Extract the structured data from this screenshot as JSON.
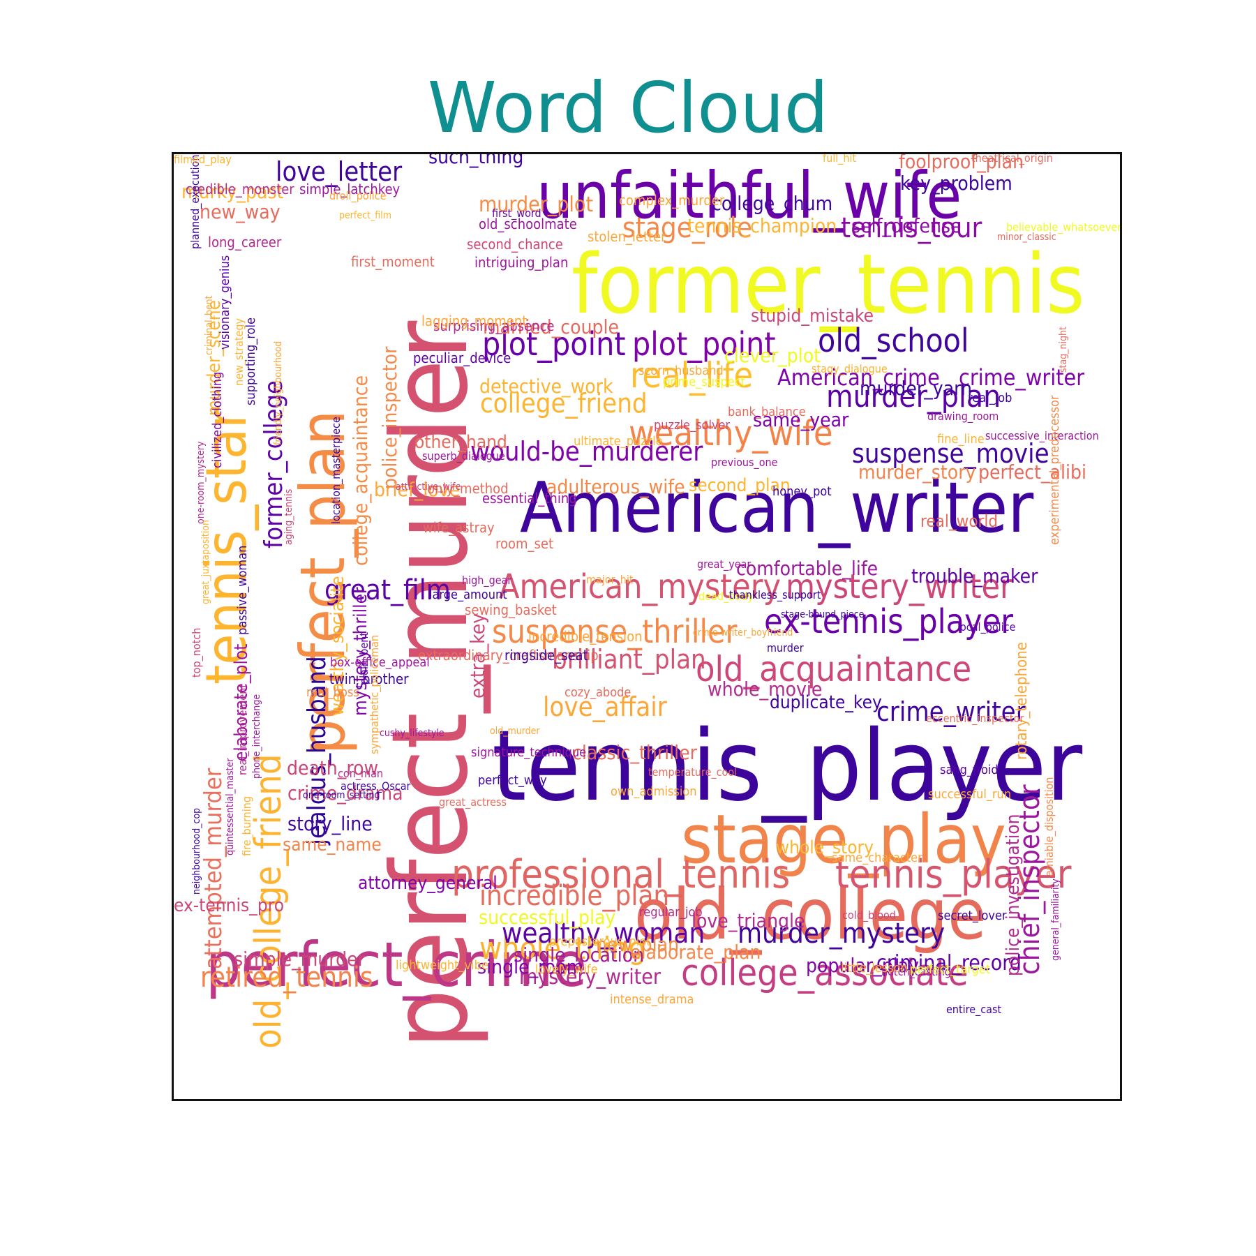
{
  "title": "Word Cloud",
  "palette": "plasma",
  "words": [
    {
      "text": "tennis_player",
      "size": 140,
      "color": "#3d049b"
    },
    {
      "text": "perfect_murder",
      "size": 150,
      "color": "#d45270",
      "rotate": true
    },
    {
      "text": "former_tennis",
      "size": 118,
      "color": "#f0f921"
    },
    {
      "text": "American_writer",
      "size": 100,
      "color": "#3e049c"
    },
    {
      "text": "unfaithful_wife",
      "size": 92,
      "color": "#6a00a8"
    },
    {
      "text": "old_college",
      "size": 100,
      "color": "#e56b5d"
    },
    {
      "text": "stage_play",
      "size": 96,
      "color": "#f1844b"
    },
    {
      "text": "perfect_crime",
      "size": 88,
      "color": "#bd3786"
    },
    {
      "text": "perfect_plan",
      "size": 88,
      "color": "#f58c46",
      "rotate": true
    },
    {
      "text": "tennis_star",
      "size": 80,
      "color": "#fdb42f",
      "rotate": true
    },
    {
      "text": "professional_tennis",
      "size": 56,
      "color": "#e06461"
    },
    {
      "text": "tennis_player",
      "size": 56,
      "color": "#d5546e"
    },
    {
      "text": "college_associate",
      "size": 52,
      "color": "#c33d80"
    },
    {
      "text": "old_college_friend",
      "size": 52,
      "color": "#fdb32f",
      "rotate": true
    },
    {
      "text": "American_mystery",
      "size": 48,
      "color": "#d5536f"
    },
    {
      "text": "mystery_writer",
      "size": 48,
      "color": "#cc4778"
    },
    {
      "text": "old_acquaintance",
      "size": 50,
      "color": "#cc4778"
    },
    {
      "text": "ex-tennis_player",
      "size": 48,
      "color": "#6a00a8"
    },
    {
      "text": "suspense_thriller",
      "size": 46,
      "color": "#f48849"
    },
    {
      "text": "real_life",
      "size": 50,
      "color": "#febd2a"
    },
    {
      "text": "wealthy_wife",
      "size": 50,
      "color": "#f2844b"
    },
    {
      "text": "plot_point",
      "size": 46,
      "color": "#6a00a8"
    },
    {
      "text": "plot_point",
      "size": 46,
      "color": "#7e03a8"
    },
    {
      "text": "old_school",
      "size": 46,
      "color": "#3e049c"
    },
    {
      "text": "murder_plan",
      "size": 44,
      "color": "#5c01a6"
    },
    {
      "text": "whole_thing",
      "size": 44,
      "color": "#fbb32f"
    },
    {
      "text": "stage_role",
      "size": 40,
      "color": "#f48849"
    },
    {
      "text": "tennis_tour",
      "size": 40,
      "color": "#8b0aa5"
    },
    {
      "text": "retired_tennis",
      "size": 40,
      "color": "#f2844b"
    },
    {
      "text": "incredible_plan",
      "size": 40,
      "color": "#e56b5d"
    },
    {
      "text": "wealthy_woman",
      "size": 40,
      "color": "#5c01a6"
    },
    {
      "text": "murder_mystery",
      "size": 40,
      "color": "#3e049c"
    },
    {
      "text": "would-be_murderer",
      "size": 38,
      "color": "#7e03a8"
    },
    {
      "text": "college_friend",
      "size": 38,
      "color": "#fdb42f"
    },
    {
      "text": "great_film",
      "size": 40,
      "color": "#5c01a6"
    },
    {
      "text": "chief_inspector",
      "size": 40,
      "color": "#9c179e",
      "rotate": true
    },
    {
      "text": "brilliant_plan",
      "size": 38,
      "color": "#d45270"
    },
    {
      "text": "love_affair",
      "size": 38,
      "color": "#fca636"
    },
    {
      "text": "crime_writer",
      "size": 38,
      "color": "#3e049c"
    },
    {
      "text": "love_letter",
      "size": 38,
      "color": "#3e049c"
    },
    {
      "text": "suspense_movie",
      "size": 38,
      "color": "#3e049c"
    },
    {
      "text": "jealous_husband",
      "size": 36,
      "color": "#2a0593",
      "rotate": true
    },
    {
      "text": "attempted_murder",
      "size": 34,
      "color": "#e8705c",
      "rotate": true
    },
    {
      "text": "former_college",
      "size": 36,
      "color": "#5c01a6",
      "rotate": true
    },
    {
      "text": "American_crime",
      "size": 32,
      "color": "#7e03a8"
    },
    {
      "text": "crime_writer",
      "size": 32,
      "color": "#7e03a8"
    },
    {
      "text": "murder_plot",
      "size": 30,
      "color": "#f58c46"
    },
    {
      "text": "criminal_record",
      "size": 30,
      "color": "#5c01a6"
    },
    {
      "text": "classic_thriller",
      "size": 28,
      "color": "#e56b5d"
    },
    {
      "text": "mystery_writer",
      "size": 30,
      "color": "#b12a90"
    },
    {
      "text": "popular_play",
      "size": 28,
      "color": "#7e03a8"
    },
    {
      "text": "single_location",
      "size": 28,
      "color": "#9c179e"
    },
    {
      "text": "elaborate_plan",
      "size": 28,
      "color": "#f48849"
    },
    {
      "text": "love_triangle",
      "size": 28,
      "color": "#b12a90"
    },
    {
      "text": "successful_play",
      "size": 28,
      "color": "#f0f921"
    },
    {
      "text": "murder_story",
      "size": 28,
      "color": "#f2844b"
    },
    {
      "text": "perfect_alibi",
      "size": 28,
      "color": "#e56b5d"
    },
    {
      "text": "tennis_champion",
      "size": 28,
      "color": "#fdb42f"
    },
    {
      "text": "self_defense",
      "size": 28,
      "color": "#8b0aa5"
    },
    {
      "text": "foolproof_plan",
      "size": 28,
      "color": "#e56b5d"
    },
    {
      "text": "key_problem",
      "size": 28,
      "color": "#3e049c"
    },
    {
      "text": "college_chum",
      "size": 28,
      "color": "#3e049c"
    },
    {
      "text": "such_thing",
      "size": 28,
      "color": "#3e049c"
    },
    {
      "text": "murky_past",
      "size": 28,
      "color": "#fdb42f"
    },
    {
      "text": "new_way",
      "size": 28,
      "color": "#e56b5d"
    },
    {
      "text": "clever_plot",
      "size": 28,
      "color": "#f0f921"
    },
    {
      "text": "married_couple",
      "size": 28,
      "color": "#e56b5d"
    },
    {
      "text": "stupid_mistake",
      "size": 26,
      "color": "#cc4778"
    },
    {
      "text": "detective_work",
      "size": 28,
      "color": "#fdb42f"
    },
    {
      "text": "adulterous_wife",
      "size": 28,
      "color": "#f48849"
    },
    {
      "text": "second_plan",
      "size": 26,
      "color": "#fdb42f"
    },
    {
      "text": "same_year",
      "size": 28,
      "color": "#7e03a8"
    },
    {
      "text": "murder_yarn",
      "size": 28,
      "color": "#3e049c"
    },
    {
      "text": "other_hand",
      "size": 26,
      "color": "#e56b5d"
    },
    {
      "text": "brief_love",
      "size": 28,
      "color": "#fca636"
    },
    {
      "text": "comfortable_life",
      "size": 28,
      "color": "#9c179e"
    },
    {
      "text": "trouble_maker",
      "size": 28,
      "color": "#5c01a6"
    },
    {
      "text": "whole_movie",
      "size": 28,
      "color": "#b12a90"
    },
    {
      "text": "duplicate_key",
      "size": 26,
      "color": "#3e049c"
    },
    {
      "text": "death_row",
      "size": 28,
      "color": "#cc4778"
    },
    {
      "text": "crime_drama",
      "size": 28,
      "color": "#cc4778"
    },
    {
      "text": "story_line",
      "size": 28,
      "color": "#3e049c"
    },
    {
      "text": "same_name",
      "size": 26,
      "color": "#f2844b"
    },
    {
      "text": "ex-tennis_pro",
      "size": 26,
      "color": "#cc4778"
    },
    {
      "text": "simple_murder",
      "size": 28,
      "color": "#cc4778"
    },
    {
      "text": "single_room",
      "size": 28,
      "color": "#7e03a8"
    },
    {
      "text": "new_plan",
      "size": 28,
      "color": "#f58c46"
    },
    {
      "text": "attorney_general",
      "size": 26,
      "color": "#7e03a8"
    },
    {
      "text": "whole_story",
      "size": 26,
      "color": "#fdb42f"
    },
    {
      "text": "real_world",
      "size": 24,
      "color": "#e56b5d"
    },
    {
      "text": "police_investigation",
      "size": 26,
      "color": "#b12a90",
      "rotate": true
    },
    {
      "text": "police_inspector",
      "size": 28,
      "color": "#f48849",
      "rotate": true
    },
    {
      "text": "college_acquaintance",
      "size": 28,
      "color": "#f58c46",
      "rotate": true
    },
    {
      "text": "extra_key",
      "size": 28,
      "color": "#cc4778",
      "rotate": true
    },
    {
      "text": "wealthy_socialite",
      "size": 26,
      "color": "#fdb42f",
      "rotate": true
    },
    {
      "text": "mystery_thriller",
      "size": 26,
      "color": "#7e03a8",
      "rotate": true
    },
    {
      "text": "elaborate_plot",
      "size": 26,
      "color": "#9c179e",
      "rotate": true
    },
    {
      "text": "murder_scene",
      "size": 26,
      "color": "#fdb42f",
      "rotate": true
    },
    {
      "text": "rotary_telephone",
      "size": 22,
      "color": "#fca636",
      "rotate": true
    },
    {
      "text": "credible_monster",
      "size": 20,
      "color": "#b12a90"
    },
    {
      "text": "simple_latchkey",
      "size": 20,
      "color": "#9c179e"
    },
    {
      "text": "long_career",
      "size": 20,
      "color": "#b12a90"
    },
    {
      "text": "old_schoolmate",
      "size": 20,
      "color": "#9c179e"
    },
    {
      "text": "second_chance",
      "size": 20,
      "color": "#cc4778"
    },
    {
      "text": "intriguing_plan",
      "size": 20,
      "color": "#9c179e"
    },
    {
      "text": "first_moment",
      "size": 20,
      "color": "#e56b5d"
    },
    {
      "text": "surprising_absence",
      "size": 20,
      "color": "#b12a90"
    },
    {
      "text": "peculiar_device",
      "size": 20,
      "color": "#5c01a6"
    },
    {
      "text": "lagging_moment",
      "size": 20,
      "color": "#fca636"
    },
    {
      "text": "stolen_letter",
      "size": 20,
      "color": "#fca636"
    },
    {
      "text": "complex_murder",
      "size": 20,
      "color": "#fca636"
    },
    {
      "text": "ultimate_puzzle",
      "size": 18,
      "color": "#fdb42f"
    },
    {
      "text": "essential_thing",
      "size": 20,
      "color": "#9c179e"
    },
    {
      "text": "only_method",
      "size": 20,
      "color": "#e56b5d"
    },
    {
      "text": "wife_astray",
      "size": 20,
      "color": "#e56b5d"
    },
    {
      "text": "room_set",
      "size": 20,
      "color": "#e56b5d"
    },
    {
      "text": "large_amount",
      "size": 18,
      "color": "#3e049c"
    },
    {
      "text": "sewing_basket",
      "size": 20,
      "color": "#e56b5d"
    },
    {
      "text": "incredible_tension",
      "size": 20,
      "color": "#fca636"
    },
    {
      "text": "extraordinary_craftsmanship",
      "size": 20,
      "color": "#e56b5d"
    },
    {
      "text": "ringside_seat",
      "size": 20,
      "color": "#3e049c"
    },
    {
      "text": "box-office_appeal",
      "size": 18,
      "color": "#9c179e"
    },
    {
      "text": "twin_brother",
      "size": 20,
      "color": "#3e049c"
    },
    {
      "text": "real_boss",
      "size": 18,
      "color": "#f48849"
    },
    {
      "text": "cozy_abode",
      "size": 18,
      "color": "#e56b5d"
    },
    {
      "text": "signature_technique",
      "size": 18,
      "color": "#9c179e"
    },
    {
      "text": "perfect_way",
      "size": 18,
      "color": "#3e049c"
    },
    {
      "text": "own_admission",
      "size": 18,
      "color": "#fca636"
    },
    {
      "text": "sang_froid",
      "size": 18,
      "color": "#5c01a6"
    },
    {
      "text": "successful_run",
      "size": 18,
      "color": "#fca636"
    },
    {
      "text": "same_character",
      "size": 18,
      "color": "#fca636"
    },
    {
      "text": "regular_job",
      "size": 18,
      "color": "#b12a90"
    },
    {
      "text": "cold_blood",
      "size": 16,
      "color": "#cc4778"
    },
    {
      "text": "intense_drama",
      "size": 18,
      "color": "#fca636"
    },
    {
      "text": "preposterous_plot",
      "size": 18,
      "color": "#fdb42f"
    },
    {
      "text": "lightweight_vibe",
      "size": 18,
      "color": "#fdb42f"
    },
    {
      "text": "lovely_wife",
      "size": 18,
      "color": "#fdb42f"
    },
    {
      "text": "notch_casting",
      "size": 16,
      "color": "#9c179e"
    },
    {
      "text": "little_lesson",
      "size": 18,
      "color": "#fdb42f"
    },
    {
      "text": "perfect_target",
      "size": 18,
      "color": "#f0f921"
    },
    {
      "text": "secret_lover",
      "size": 18,
      "color": "#3e049c"
    },
    {
      "text": "entire_cast",
      "size": 16,
      "color": "#3e049c"
    },
    {
      "text": "bank_balance",
      "size": 18,
      "color": "#e56b5d"
    },
    {
      "text": "puzzle_solver",
      "size": 18,
      "color": "#cc4778"
    },
    {
      "text": "scorn_husband",
      "size": 18,
      "color": "#fca636"
    },
    {
      "text": "honey_pot",
      "size": 18,
      "color": "#3e049c"
    },
    {
      "text": "real_job",
      "size": 18,
      "color": "#3e049c"
    },
    {
      "text": "fine_line",
      "size": 18,
      "color": "#fdb42f"
    },
    {
      "text": "previous_one",
      "size": 16,
      "color": "#9c179e"
    },
    {
      "text": "successive_interaction",
      "size": 16,
      "color": "#9c179e"
    },
    {
      "text": "stagy_dialogue",
      "size": 16,
      "color": "#fdb42f"
    },
    {
      "text": "drawing_room",
      "size": 16,
      "color": "#9c179e"
    },
    {
      "text": "prime_suspect",
      "size": 18,
      "color": "#f0f921"
    },
    {
      "text": "superb_dialogue",
      "size": 16,
      "color": "#9c179e"
    },
    {
      "text": "attractive_wife",
      "size": 14,
      "color": "#cc4778"
    },
    {
      "text": "major_hit",
      "size": 16,
      "color": "#fca636"
    },
    {
      "text": "high_gear",
      "size": 16,
      "color": "#9c179e"
    },
    {
      "text": "great_year",
      "size": 16,
      "color": "#9c179e"
    },
    {
      "text": "dead_body",
      "size": 16,
      "color": "#f0f921"
    },
    {
      "text": "local_police",
      "size": 16,
      "color": "#5c01a6"
    },
    {
      "text": "thankless_support",
      "size": 16,
      "color": "#3e049c"
    },
    {
      "text": "stage-bound_piece",
      "size": 14,
      "color": "#3e049c"
    },
    {
      "text": "crime-writer_boyfriend",
      "size": 14,
      "color": "#fca636"
    },
    {
      "text": "murder",
      "size": 16,
      "color": "#3e049c"
    },
    {
      "text": "old_murder",
      "size": 14,
      "color": "#fca636"
    },
    {
      "text": "cushy_lifestyle",
      "size": 14,
      "color": "#9c179e"
    },
    {
      "text": "temperature_cool",
      "size": 16,
      "color": "#e56b5d"
    },
    {
      "text": "actress_Oscar",
      "size": 16,
      "color": "#3e049c"
    },
    {
      "text": "great_actress",
      "size": 16,
      "color": "#e56b5d"
    },
    {
      "text": "eccentric_inspector",
      "size": 16,
      "color": "#e56b5d"
    },
    {
      "text": "con_man",
      "size": 16,
      "color": "#b12a90"
    },
    {
      "text": "one-room_setting",
      "size": 14,
      "color": "#3e049c"
    },
    {
      "text": "droll_police",
      "size": 16,
      "color": "#fca636"
    },
    {
      "text": "perfect_film",
      "size": 14,
      "color": "#fdb42f"
    },
    {
      "text": "first_word",
      "size": 16,
      "color": "#5c01a6"
    },
    {
      "text": "full_hit",
      "size": 16,
      "color": "#fdb42f"
    },
    {
      "text": "theatrical_origin",
      "size": 16,
      "color": "#e56b5d"
    },
    {
      "text": "believable_whatsoever",
      "size": 16,
      "color": "#f0f921"
    },
    {
      "text": "minor_classic",
      "size": 14,
      "color": "#e56b5d"
    },
    {
      "text": "stag_night",
      "size": 14,
      "color": "#e56b5d"
    },
    {
      "text": "experimental_predecessor",
      "size": 18,
      "color": "#f48849",
      "rotate": true
    },
    {
      "text": "amiable_disposition",
      "size": 16,
      "color": "#f48849",
      "rotate": true
    },
    {
      "text": "general_familiarity",
      "size": 14,
      "color": "#9c179e",
      "rotate": true
    },
    {
      "text": "planned_execution",
      "size": 16,
      "color": "#3e049c",
      "rotate": true
    },
    {
      "text": "criminal_bent",
      "size": 14,
      "color": "#fca636",
      "rotate": true
    },
    {
      "text": "visionary_genius",
      "size": 18,
      "color": "#5c01a6",
      "rotate": true
    },
    {
      "text": "new_strategy",
      "size": 16,
      "color": "#fdb42f",
      "rotate": true
    },
    {
      "text": "supporting_role",
      "size": 18,
      "color": "#3e049c",
      "rotate": true
    },
    {
      "text": "friendly_neighbourhood",
      "size": 14,
      "color": "#fca636",
      "rotate": true
    },
    {
      "text": "location_masterpiece",
      "size": 16,
      "color": "#3e049c",
      "rotate": true
    },
    {
      "text": "one-room_mystery",
      "size": 14,
      "color": "#b12a90",
      "rotate": true
    },
    {
      "text": "civilized_clothing",
      "size": 18,
      "color": "#7e03a8",
      "rotate": true
    },
    {
      "text": "aging_tennis",
      "size": 14,
      "color": "#cc4778",
      "rotate": true
    },
    {
      "text": "great_juxtaposition",
      "size": 14,
      "color": "#fdb42f",
      "rotate": true
    },
    {
      "text": "top_notch",
      "size": 16,
      "color": "#cc4778",
      "rotate": true
    },
    {
      "text": "passive_woman",
      "size": 18,
      "color": "#3e049c",
      "rotate": true
    },
    {
      "text": "plain_bent",
      "size": 16,
      "color": "#5c01a6",
      "rotate": true
    },
    {
      "text": "sympathetic_policeman",
      "size": 16,
      "color": "#fca636",
      "rotate": true
    },
    {
      "text": "real_improvement",
      "size": 16,
      "color": "#b12a90",
      "rotate": true
    },
    {
      "text": "phone_interchange",
      "size": 14,
      "color": "#9c179e",
      "rotate": true
    },
    {
      "text": "neighbourhood_cop",
      "size": 14,
      "color": "#3e049c",
      "rotate": true
    },
    {
      "text": "quintessential_master",
      "size": 14,
      "color": "#9c179e",
      "rotate": true
    },
    {
      "text": "fire_burning",
      "size": 16,
      "color": "#fdb42f",
      "rotate": true
    },
    {
      "text": "filmed_play",
      "size": 16,
      "color": "#fdb42f",
      "rotate": true
    }
  ]
}
